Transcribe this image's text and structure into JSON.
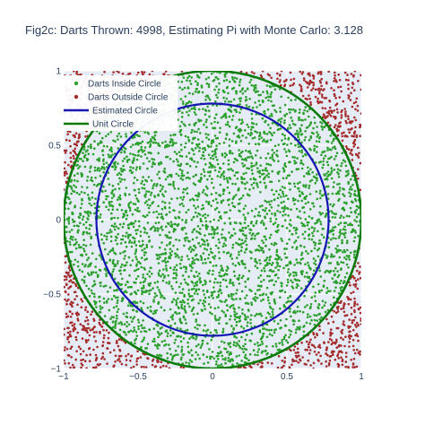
{
  "chart_data": {
    "type": "scatter",
    "title": "Fig2c: Darts Thrown: 4998, Estimating Pi with Monte Carlo: 3.128",
    "darts_thrown": 4998,
    "pi_estimate": 3.128,
    "xlim": [
      -1,
      1
    ],
    "ylim": [
      -1,
      1
    ],
    "x_ticks": [
      -1,
      -0.5,
      0,
      0.5,
      1
    ],
    "y_ticks": [
      -1,
      -0.5,
      0,
      0.5,
      1
    ],
    "x_tick_labels": [
      "−1",
      "−0.5",
      "0",
      "0.5",
      "1"
    ],
    "y_tick_labels": [
      "−1",
      "−0.5",
      "0",
      "0.5",
      "1"
    ],
    "grid": true,
    "legend_position": "top-left",
    "series": [
      {
        "name": "Darts Inside Circle",
        "kind": "markers",
        "color": "#2ca02c",
        "region": "inside-unit-circle"
      },
      {
        "name": "Darts Outside Circle",
        "kind": "markers",
        "color": "#a52a2a",
        "region": "outside-unit-circle"
      },
      {
        "name": "Estimated Circle",
        "kind": "line",
        "color": "#1616b4",
        "center": [
          0,
          0
        ],
        "radius": 0.78
      },
      {
        "name": "Unit Circle",
        "kind": "line",
        "color": "#0a7a0a",
        "center": [
          0,
          0
        ],
        "radius": 1.0
      }
    ]
  }
}
